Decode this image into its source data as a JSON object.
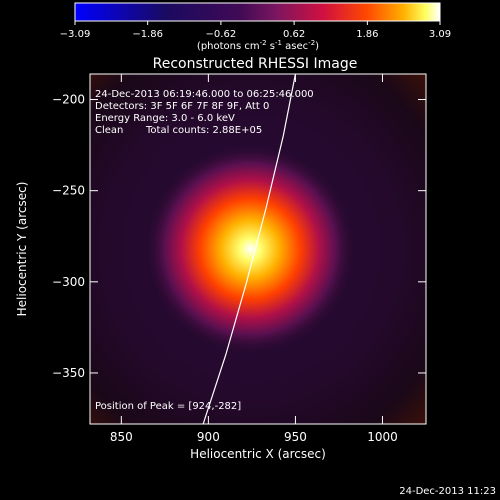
{
  "colorbar": {
    "ticks": [
      "-3.09",
      "-1.86",
      "-0.62",
      "0.62",
      "1.86",
      "3.09"
    ],
    "units_prefix": "(photons cm",
    "units_exp1": "-2",
    "units_mid": " s",
    "units_exp2": "-1",
    "units_mid2": " asec",
    "units_exp3": "-2",
    "units_suffix": ")",
    "min": -3.09,
    "max": 3.09
  },
  "image": {
    "title": "Reconstructed RHESSI Image",
    "time_range": "24-Dec-2013 06:19:46.000 to 06:25:46.000",
    "detectors": "Detectors: 3F 5F 6F 7F 8F 9F, Att 0",
    "energy_range": "Energy Range: 3.0 - 6.0 keV",
    "algorithm": "Clean",
    "total_counts": "Total counts: 2.88E+05",
    "peak_position": "Position of Peak = [924,-282]"
  },
  "timestamp": "24-Dec-2013 11:23",
  "chart_data": {
    "type": "heatmap",
    "title": "Reconstructed RHESSI Image",
    "xlabel": "Heliocentric X (arcsec)",
    "ylabel": "Heliocentric Y (arcsec)",
    "xlim": [
      832,
      1025
    ],
    "ylim": [
      -378,
      -186
    ],
    "x_ticks": [
      850,
      900,
      950,
      1000
    ],
    "y_ticks": [
      -200,
      -250,
      -300,
      -350
    ],
    "x_tick_labels": [
      "850",
      "900",
      "950",
      "1000"
    ],
    "y_tick_labels": [
      "−200",
      "−250",
      "−300",
      "−350"
    ],
    "peak": {
      "x": 924,
      "y": -282
    },
    "source_sigma_arcsec": 8,
    "limb_points": [
      [
        897,
        -378
      ],
      [
        910,
        -340
      ],
      [
        922,
        -300
      ],
      [
        933,
        -260
      ],
      [
        943,
        -220
      ],
      [
        950,
        -186
      ]
    ],
    "colormap": [
      "#0000ff",
      "#000000",
      "#3a0850",
      "#7a1868",
      "#c01060",
      "#ff2000",
      "#ff9000",
      "#ffff40",
      "#ffffff"
    ]
  }
}
